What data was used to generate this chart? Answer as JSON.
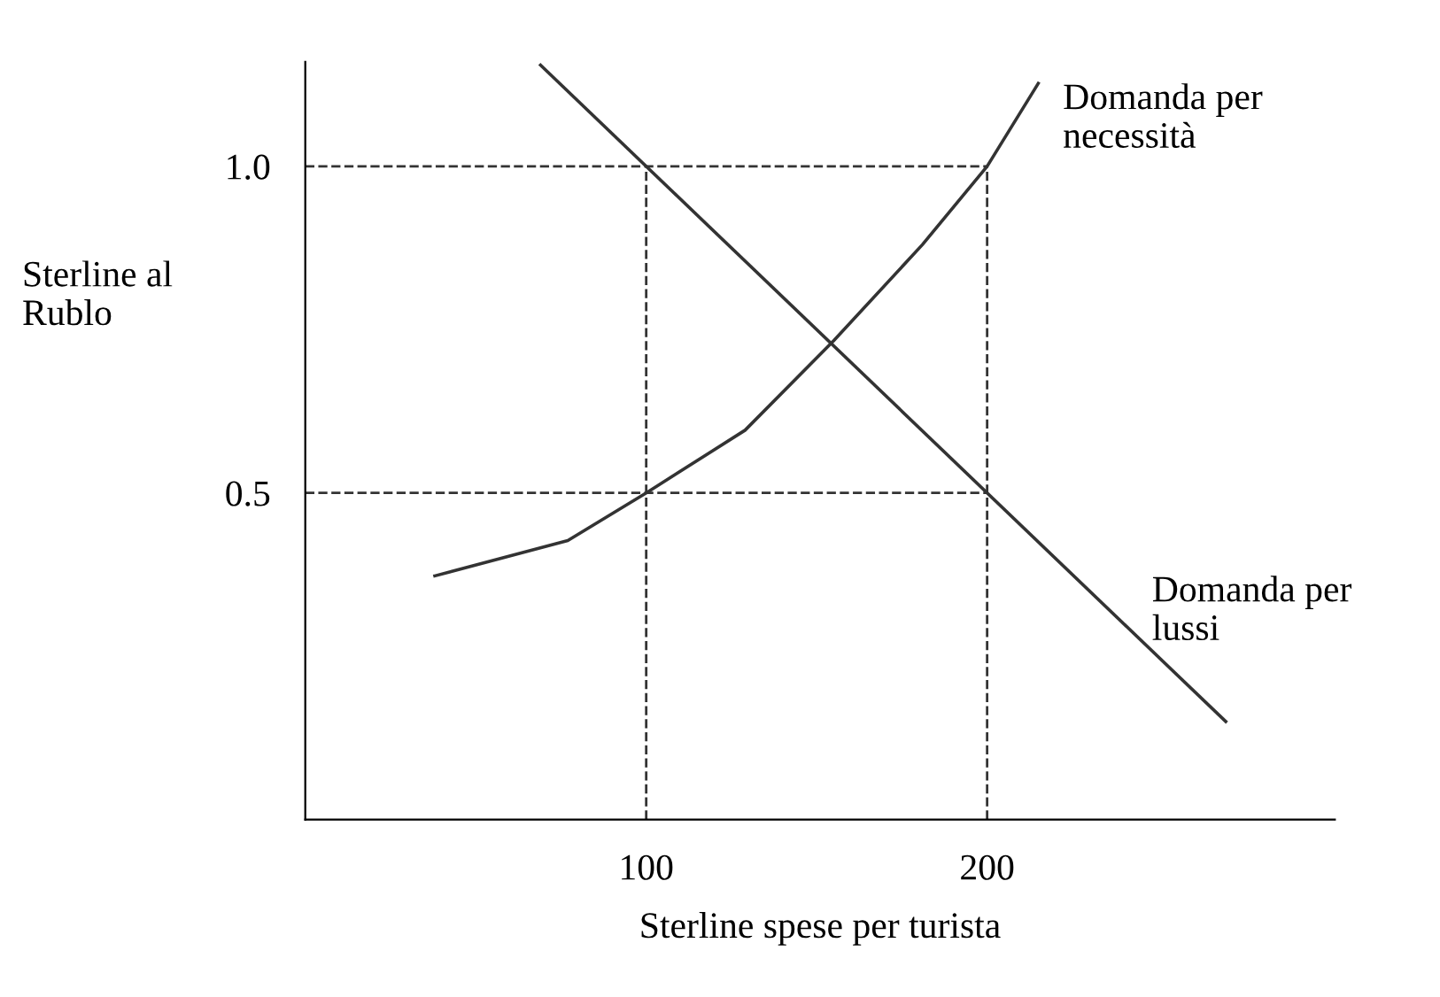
{
  "chart_data": {
    "type": "line",
    "xlabel": "Sterline spese per turista",
    "ylabel": "Sterline al\nRublo",
    "xlim": [
      0,
      302
    ],
    "ylim": [
      0,
      1.16
    ],
    "xticks": [
      100,
      200
    ],
    "yticks": [
      {
        "value": 0.5,
        "label": "0.5"
      },
      {
        "value": 1.0,
        "label": "1.0"
      }
    ],
    "series": [
      {
        "name": "Domanda per\nnecessità",
        "color": "#333333",
        "x": [
          38,
          77,
          100,
          129,
          155,
          181,
          200,
          215
        ],
        "values": [
          0.373,
          0.427,
          0.5,
          0.596,
          0.733,
          0.88,
          1.0,
          1.127
        ]
      },
      {
        "name": "Domanda per\nlussi",
        "color": "#333333",
        "x": [
          69,
          270
        ],
        "values": [
          1.155,
          0.15
        ]
      }
    ],
    "ref_lines": [
      {
        "axis": "y",
        "value": 1.0,
        "color": "#333333",
        "line_style": "dashed"
      },
      {
        "axis": "y",
        "value": 0.5,
        "color": "#333333",
        "line_style": "dashed"
      },
      {
        "axis": "x",
        "value": 100,
        "color": "#333333",
        "line_style": "dashed"
      },
      {
        "axis": "x",
        "value": 200,
        "color": "#333333",
        "line_style": "dashed"
      }
    ],
    "grid": false,
    "legend": false,
    "marker": "none",
    "line_style": "solid"
  }
}
